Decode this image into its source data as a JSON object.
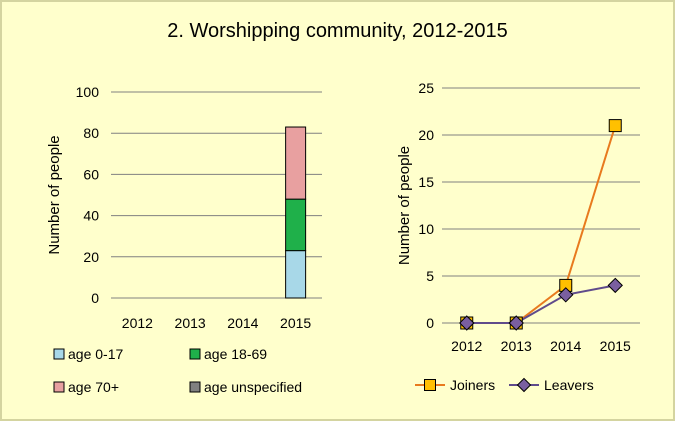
{
  "title": "2. Worshipping community, 2012-2015",
  "chart_data": [
    {
      "type": "bar",
      "stacked": true,
      "categories": [
        "2012",
        "2013",
        "2014",
        "2015"
      ],
      "ylabel": "Number of people",
      "ylim": [
        0,
        100
      ],
      "yticks": [
        0,
        20,
        40,
        60,
        80,
        100
      ],
      "grid": true,
      "legend": "bottom",
      "series": [
        {
          "name": "age 0-17",
          "color": "#a8d8e8",
          "values": [
            0,
            0,
            0,
            23
          ]
        },
        {
          "name": "age 18-69",
          "color": "#1fb04a",
          "values": [
            0,
            0,
            0,
            25
          ]
        },
        {
          "name": "age 70+",
          "color": "#e8a0a0",
          "values": [
            0,
            0,
            0,
            35
          ]
        },
        {
          "name": "age unspecified",
          "color": "#808080",
          "values": [
            0,
            0,
            0,
            0
          ]
        }
      ]
    },
    {
      "type": "line",
      "categories": [
        "2012",
        "2013",
        "2014",
        "2015"
      ],
      "ylabel": "Number of people",
      "ylim": [
        0,
        25
      ],
      "yticks": [
        0,
        5,
        10,
        15,
        20,
        25
      ],
      "grid": true,
      "legend": "bottom",
      "series": [
        {
          "name": "Joiners",
          "color": "#e87a1e",
          "marker_color": "#ffc000",
          "marker": "square",
          "values": [
            0,
            0,
            4,
            21
          ]
        },
        {
          "name": "Leavers",
          "color": "#5f4b8b",
          "marker_color": "#7a5fa0",
          "marker": "diamond",
          "values": [
            0,
            0,
            3,
            4
          ]
        }
      ]
    }
  ]
}
